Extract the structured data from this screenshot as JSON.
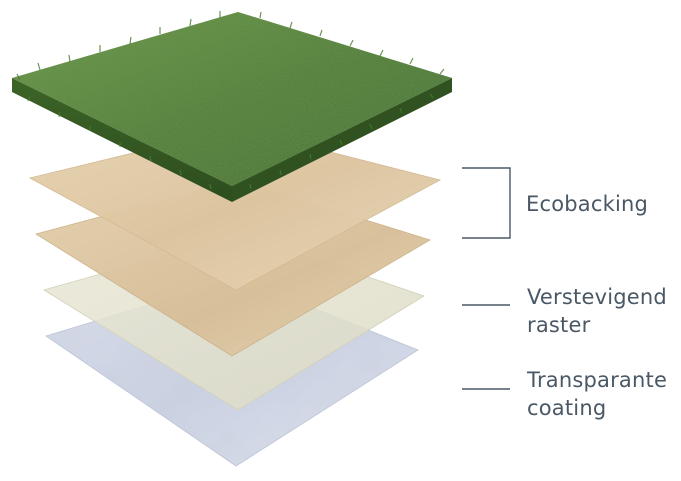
{
  "labels": {
    "ecobacking": "Ecobacking",
    "raster_line1": "Verstevigend",
    "raster_line2": "raster",
    "coating_line1": "Transparante",
    "coating_line2": "coating"
  },
  "colors": {
    "text": "#4a5866",
    "leader_line": "#4a5866",
    "grass_dark": "#3f6a2c",
    "grass_mid": "#5b8a3c",
    "grass_light": "#7aa552",
    "backing_tan": "#dcc49f",
    "raster_tan": "#d8c09b",
    "mesh_beige": "#e4e2cf",
    "coating_blue": "#cfd6e6"
  },
  "icons": {
    "layer_stack": "layered-turf-illustration"
  }
}
